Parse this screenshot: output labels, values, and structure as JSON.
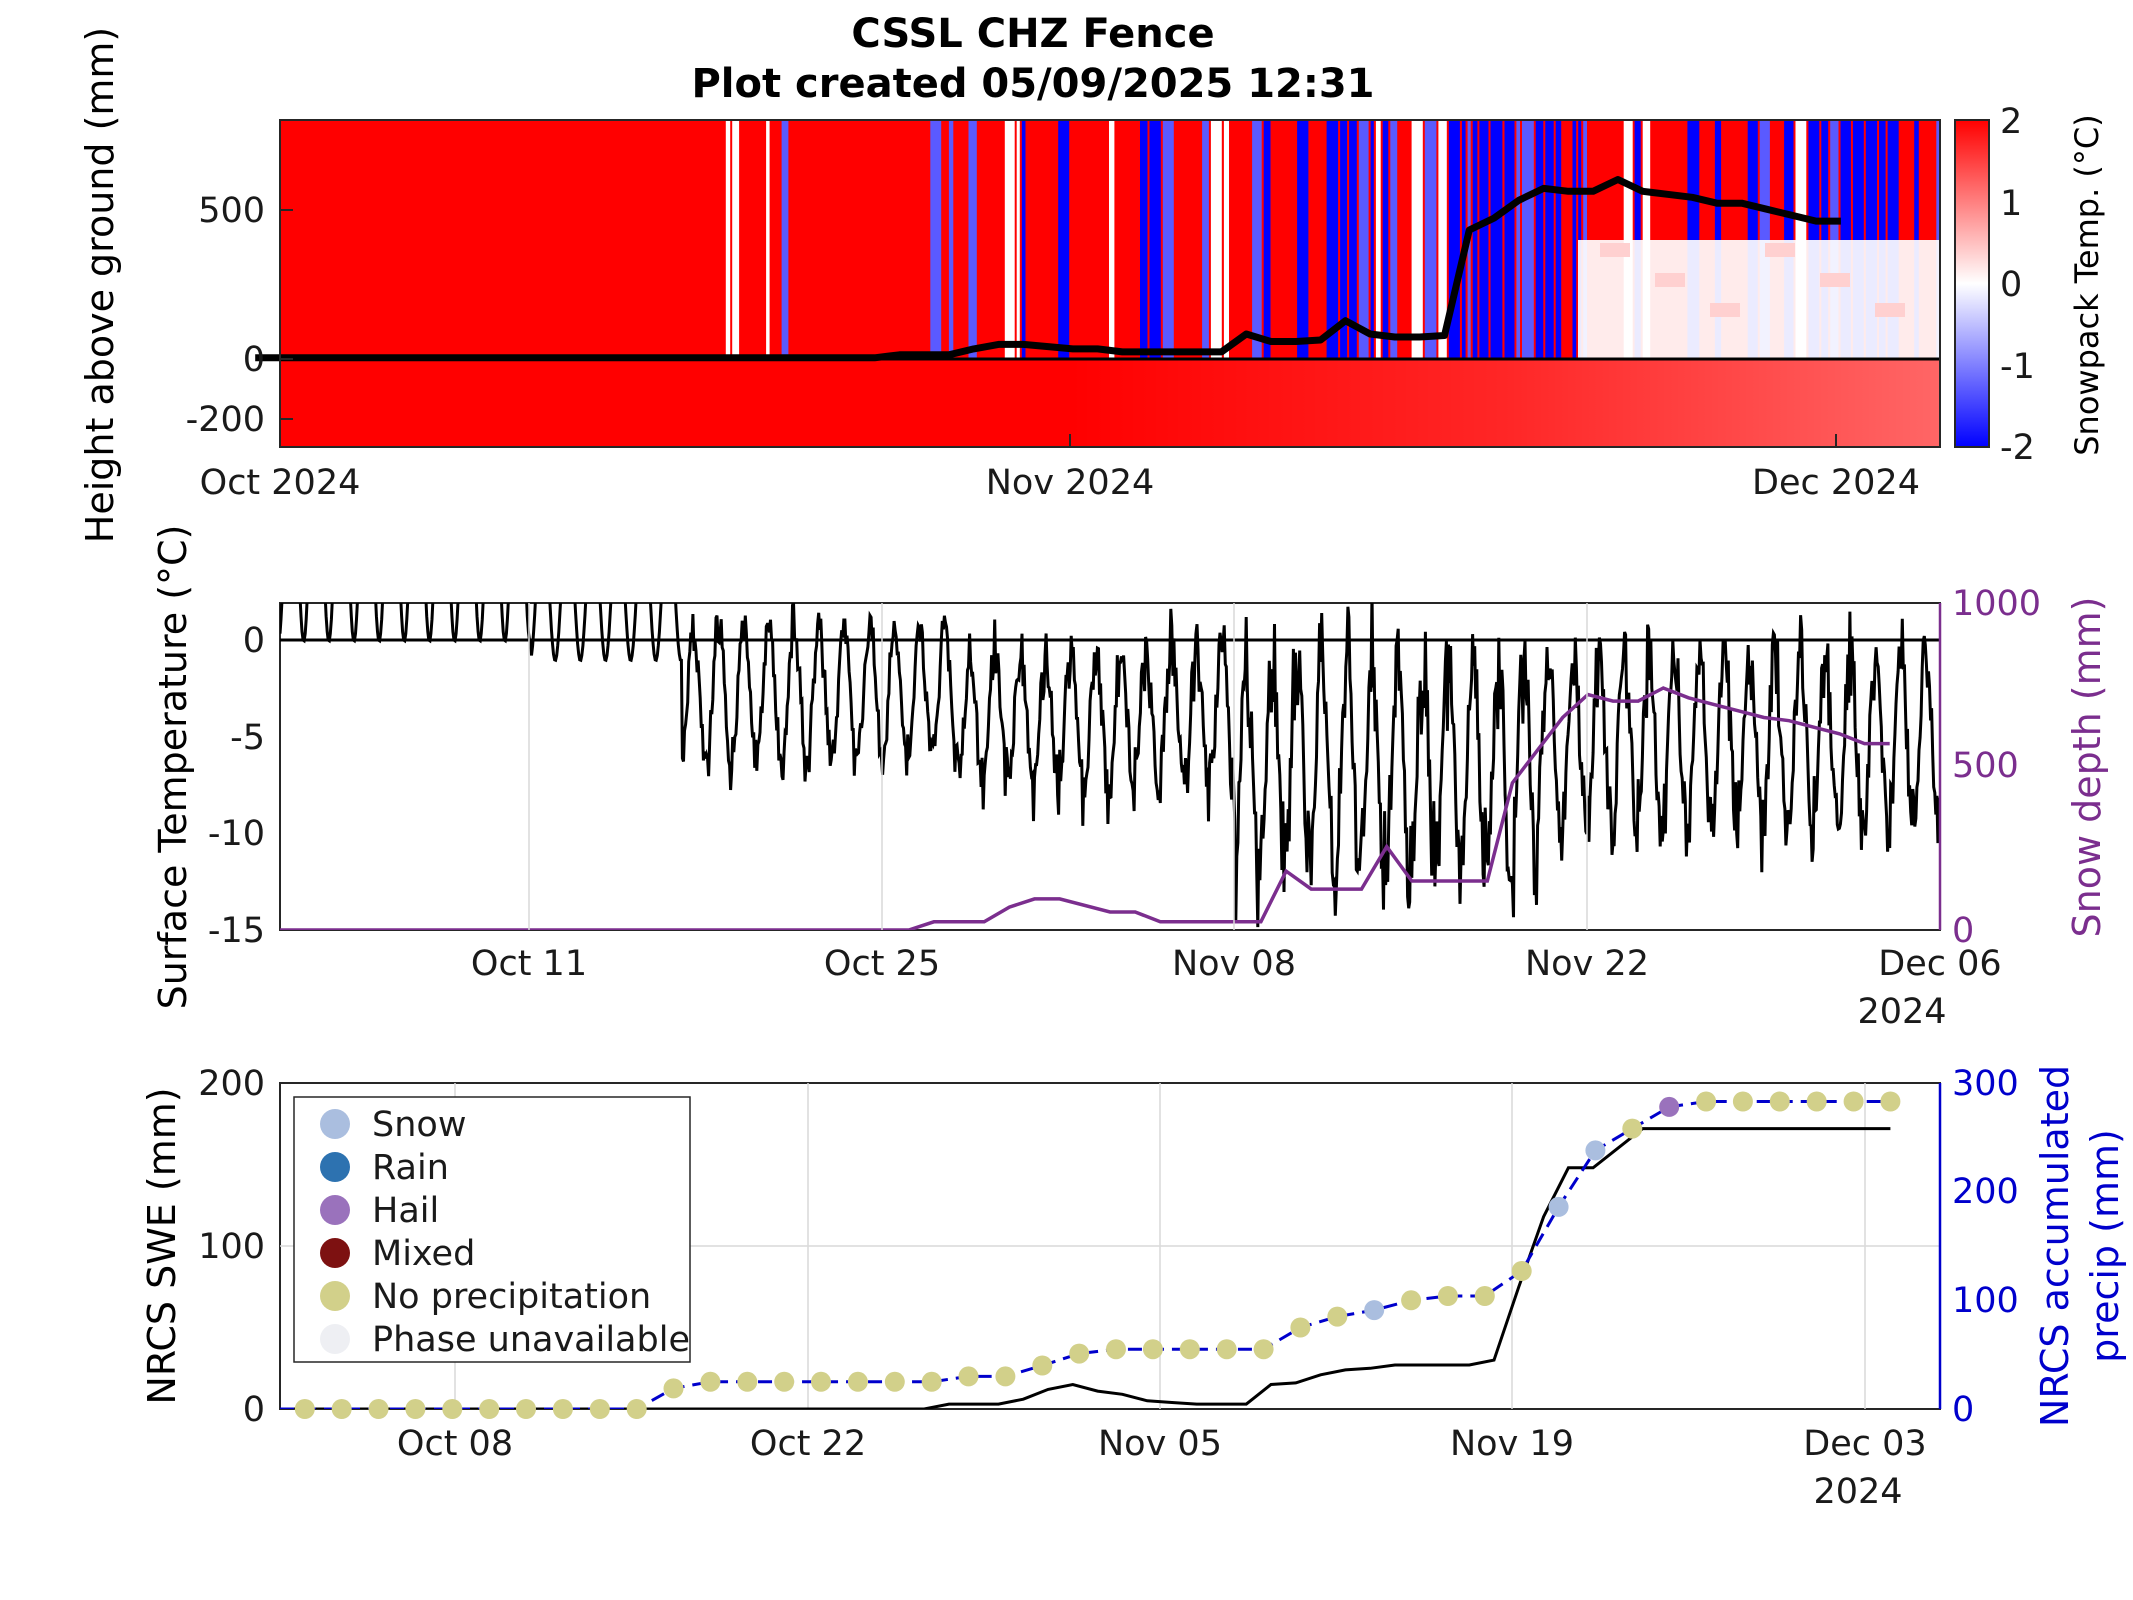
{
  "figure": {
    "title_line1": "CSSL CHZ Fence",
    "title_line2": "Plot created 05/09/2025 12:31"
  },
  "panel1": {
    "ylabel": "Height above ground (mm)",
    "colorbar_label": "Snowpack Temp. (°C)",
    "colorbar_ticks": [
      "2",
      "1",
      "0",
      "-1",
      "-2"
    ],
    "colorbar_range": [
      -2,
      2
    ],
    "y_ticks": [
      "500",
      "0",
      "-200"
    ],
    "x_ticks": [
      "Oct 2024",
      "Nov 2024",
      "Dec 2024"
    ],
    "colors": {
      "warm": "#ff0000",
      "neutral": "#ffffff",
      "cold": "#0000ff",
      "depth_line": "#000000"
    },
    "snow_depth_line": [
      [
        "2024-09-30",
        0
      ],
      [
        "2024-10-25",
        0
      ],
      [
        "2024-10-26",
        10
      ],
      [
        "2024-10-28",
        10
      ],
      [
        "2024-10-29",
        30
      ],
      [
        "2024-10-30",
        45
      ],
      [
        "2024-10-31",
        45
      ],
      [
        "2024-11-02",
        30
      ],
      [
        "2024-11-03",
        30
      ],
      [
        "2024-11-04",
        20
      ],
      [
        "2024-11-07",
        20
      ],
      [
        "2024-11-08",
        20
      ],
      [
        "2024-11-09",
        80
      ],
      [
        "2024-11-10",
        55
      ],
      [
        "2024-11-11",
        55
      ],
      [
        "2024-11-12",
        60
      ],
      [
        "2024-11-13",
        125
      ],
      [
        "2024-11-14",
        80
      ],
      [
        "2024-11-15",
        70
      ],
      [
        "2024-11-16",
        70
      ],
      [
        "2024-11-17",
        75
      ],
      [
        "2024-11-18",
        430
      ],
      [
        "2024-11-19",
        470
      ],
      [
        "2024-11-20",
        530
      ],
      [
        "2024-11-21",
        570
      ],
      [
        "2024-11-22",
        560
      ],
      [
        "2024-11-23",
        560
      ],
      [
        "2024-11-24",
        600
      ],
      [
        "2024-11-25",
        560
      ],
      [
        "2024-11-26",
        550
      ],
      [
        "2024-11-27",
        540
      ],
      [
        "2024-11-28",
        520
      ],
      [
        "2024-11-29",
        520
      ],
      [
        "2024-11-30",
        500
      ],
      [
        "2024-12-01",
        480
      ],
      [
        "2024-12-02",
        460
      ],
      [
        "2024-12-03",
        460
      ]
    ]
  },
  "panel2": {
    "ylabel_left": "Surface Temperature (°C)",
    "ylabel_right": "Snow depth (mm)",
    "y_ticks_left": [
      "0",
      "-5",
      "-10",
      "-15"
    ],
    "y_ticks_right": [
      "1000",
      "500",
      "0"
    ],
    "x_ticks": [
      "Oct 11",
      "Oct 25",
      "Nov 08",
      "Nov 22",
      "Dec 06"
    ],
    "year_label": "2024",
    "ylim_left": [
      -15,
      2
    ],
    "ylim_right": [
      0,
      1000
    ],
    "colors": {
      "temperature": "#000000",
      "snow_depth": "#7b2e8e"
    },
    "snow_depth": [
      [
        "2024-10-01",
        0
      ],
      [
        "2024-10-26",
        0
      ],
      [
        "2024-10-27",
        25
      ],
      [
        "2024-10-29",
        25
      ],
      [
        "2024-10-30",
        70
      ],
      [
        "2024-10-31",
        95
      ],
      [
        "2024-11-01",
        95
      ],
      [
        "2024-11-03",
        55
      ],
      [
        "2024-11-04",
        55
      ],
      [
        "2024-11-05",
        25
      ],
      [
        "2024-11-09",
        25
      ],
      [
        "2024-11-10",
        180
      ],
      [
        "2024-11-11",
        125
      ],
      [
        "2024-11-13",
        125
      ],
      [
        "2024-11-14",
        255
      ],
      [
        "2024-11-15",
        150
      ],
      [
        "2024-11-18",
        150
      ],
      [
        "2024-11-19",
        450
      ],
      [
        "2024-11-20",
        550
      ],
      [
        "2024-11-21",
        650
      ],
      [
        "2024-11-22",
        720
      ],
      [
        "2024-11-23",
        700
      ],
      [
        "2024-11-24",
        700
      ],
      [
        "2024-11-25",
        740
      ],
      [
        "2024-11-26",
        710
      ],
      [
        "2024-11-27",
        690
      ],
      [
        "2024-11-28",
        670
      ],
      [
        "2024-11-29",
        650
      ],
      [
        "2024-11-30",
        640
      ],
      [
        "2024-12-01",
        620
      ],
      [
        "2024-12-02",
        600
      ],
      [
        "2024-12-03",
        570
      ],
      [
        "2024-12-04",
        570
      ]
    ]
  },
  "panel3": {
    "ylabel_left": "NRCS SWE (mm)",
    "ylabel_right_line1": "NRCS accumulated",
    "ylabel_right_line2": "precip (mm)",
    "y_ticks_left": [
      "200",
      "100",
      "0"
    ],
    "y_ticks_right": [
      "300",
      "200",
      "100",
      "0"
    ],
    "x_ticks": [
      "Oct 08",
      "Oct 22",
      "Nov 05",
      "Nov 19",
      "Dec 03"
    ],
    "year_label": "2024",
    "ylim_left": [
      0,
      200
    ],
    "ylim_right": [
      0,
      300
    ],
    "legend": [
      {
        "label": "Snow",
        "color": "#aabedf"
      },
      {
        "label": "Rain",
        "color": "#2d72b0"
      },
      {
        "label": "Hail",
        "color": "#9a72bc"
      },
      {
        "label": "Mixed",
        "color": "#7d1111"
      },
      {
        "label": "No precipitation",
        "color": "#d2d08a"
      },
      {
        "label": "Phase unavailable",
        "color": "#eeeff3"
      }
    ],
    "colors": {
      "swe": "#000000",
      "precip": "#0000cc",
      "right_axis": "#0000cc"
    },
    "swe": [
      [
        "2024-10-01",
        0
      ],
      [
        "2024-10-27",
        0
      ],
      [
        "2024-10-28",
        3
      ],
      [
        "2024-10-30",
        3
      ],
      [
        "2024-10-31",
        6
      ],
      [
        "2024-11-01",
        12
      ],
      [
        "2024-11-02",
        15
      ],
      [
        "2024-11-03",
        11
      ],
      [
        "2024-11-04",
        9
      ],
      [
        "2024-11-05",
        5
      ],
      [
        "2024-11-06",
        4
      ],
      [
        "2024-11-07",
        3
      ],
      [
        "2024-11-09",
        3
      ],
      [
        "2024-11-10",
        15
      ],
      [
        "2024-11-11",
        16
      ],
      [
        "2024-11-12",
        21
      ],
      [
        "2024-11-13",
        24
      ],
      [
        "2024-11-14",
        25
      ],
      [
        "2024-11-15",
        27
      ],
      [
        "2024-11-18",
        27
      ],
      [
        "2024-11-19",
        30
      ],
      [
        "2024-11-20",
        75
      ],
      [
        "2024-11-21",
        118
      ],
      [
        "2024-11-22",
        148
      ],
      [
        "2024-11-23",
        148
      ],
      [
        "2024-11-24",
        160
      ],
      [
        "2024-11-25",
        172
      ],
      [
        "2024-12-05",
        172
      ]
    ],
    "precip_points": [
      {
        "date": "2024-10-02",
        "value": 0,
        "phase": "No precipitation"
      },
      {
        "date": "2024-10-03",
        "value": 0,
        "phase": "No precipitation"
      },
      {
        "date": "2024-10-04",
        "value": 0,
        "phase": "No precipitation"
      },
      {
        "date": "2024-10-05",
        "value": 0,
        "phase": "No precipitation"
      },
      {
        "date": "2024-10-06",
        "value": 0,
        "phase": "No precipitation"
      },
      {
        "date": "2024-10-07",
        "value": 0,
        "phase": "No precipitation"
      },
      {
        "date": "2024-10-08",
        "value": 0,
        "phase": "No precipitation"
      },
      {
        "date": "2024-10-09",
        "value": 0,
        "phase": "No precipitation"
      },
      {
        "date": "2024-10-10",
        "value": 0,
        "phase": "No precipitation"
      },
      {
        "date": "2024-10-11",
        "value": 0,
        "phase": "No precipitation"
      },
      {
        "date": "2024-10-12",
        "value": 19,
        "phase": "No precipitation"
      },
      {
        "date": "2024-10-13",
        "value": 25,
        "phase": "No precipitation"
      },
      {
        "date": "2024-10-14",
        "value": 25,
        "phase": "No precipitation"
      },
      {
        "date": "2024-10-15",
        "value": 25,
        "phase": "No precipitation"
      },
      {
        "date": "2024-10-16",
        "value": 25,
        "phase": "No precipitation"
      },
      {
        "date": "2024-10-17",
        "value": 25,
        "phase": "No precipitation"
      },
      {
        "date": "2024-10-18",
        "value": 25,
        "phase": "No precipitation"
      },
      {
        "date": "2024-10-19",
        "value": 25,
        "phase": "No precipitation"
      },
      {
        "date": "2024-10-20",
        "value": 30,
        "phase": "No precipitation"
      },
      {
        "date": "2024-10-21",
        "value": 30,
        "phase": "No precipitation"
      },
      {
        "date": "2024-10-22",
        "value": 40,
        "phase": "No precipitation"
      },
      {
        "date": "2024-10-23",
        "value": 51,
        "phase": "No precipitation"
      },
      {
        "date": "2024-10-24",
        "value": 55,
        "phase": "No precipitation"
      },
      {
        "date": "2024-10-25",
        "value": 55,
        "phase": "No precipitation"
      },
      {
        "date": "2024-10-26",
        "value": 55,
        "phase": "No precipitation"
      },
      {
        "date": "2024-10-27",
        "value": 55,
        "phase": "No precipitation"
      },
      {
        "date": "2024-10-28",
        "value": 55,
        "phase": "No precipitation"
      },
      {
        "date": "2024-10-29",
        "value": 75,
        "phase": "No precipitation"
      },
      {
        "date": "2024-10-30",
        "value": 85,
        "phase": "No precipitation"
      },
      {
        "date": "2024-10-31",
        "value": 91,
        "phase": "Snow"
      },
      {
        "date": "2024-11-01",
        "value": 100,
        "phase": "No precipitation"
      },
      {
        "date": "2024-11-02",
        "value": 104,
        "phase": "No precipitation"
      },
      {
        "date": "2024-11-03",
        "value": 104,
        "phase": "No precipitation"
      },
      {
        "date": "2024-11-04",
        "value": 127,
        "phase": "No precipitation"
      },
      {
        "date": "2024-11-05",
        "value": 186,
        "phase": "Snow"
      },
      {
        "date": "2024-11-06",
        "value": 238,
        "phase": "Snow"
      },
      {
        "date": "2024-11-07",
        "value": 258,
        "phase": "No precipitation"
      },
      {
        "date": "2024-11-08",
        "value": 278,
        "phase": "Hail"
      },
      {
        "date": "2024-11-09",
        "value": 283,
        "phase": "No precipitation"
      },
      {
        "date": "2024-11-10",
        "value": 283,
        "phase": "No precipitation"
      },
      {
        "date": "2024-11-11",
        "value": 283,
        "phase": "No precipitation"
      },
      {
        "date": "2024-11-12",
        "value": 283,
        "phase": "No precipitation"
      },
      {
        "date": "2024-11-13",
        "value": 283,
        "phase": "No precipitation"
      },
      {
        "date": "2024-11-14",
        "value": 283,
        "phase": "No precipitation"
      }
    ]
  },
  "chart_data": [
    {
      "type": "heatmap",
      "title": "CSSL CHZ Fence",
      "subtitle": "Plot created 05/09/2025 12:31",
      "ylabel": "Height above ground (mm)",
      "colorbar_label": "Snowpack Temp. (°C)",
      "clim": [
        -2,
        2
      ],
      "y_ticks": [
        500,
        0,
        -200
      ],
      "x_ticks": [
        "Oct 2024",
        "Nov 2024",
        "Dec 2024"
      ],
      "xlim": [
        "2024-10-01",
        "2024-12-07"
      ],
      "ylim": [
        -300,
        800
      ]
    },
    {
      "type": "line",
      "ylabel": "Surface Temperature (°C)",
      "ylabel_right": "Snow depth (mm)",
      "x_ticks": [
        "Oct 11",
        "Oct 25",
        "Nov 08",
        "Nov 22",
        "Dec 06"
      ],
      "ylim": [
        -15,
        2
      ],
      "ylim_right": [
        0,
        1000
      ],
      "series": [
        {
          "name": "Surface Temperature (°C)"
        },
        {
          "name": "Snow depth (mm)"
        }
      ]
    },
    {
      "type": "line",
      "ylabel": "NRCS SWE (mm)",
      "ylabel_right": "NRCS accumulated precip (mm)",
      "x_ticks": [
        "Oct 08",
        "Oct 22",
        "Nov 05",
        "Nov 19",
        "Dec 03"
      ],
      "ylim": [
        0,
        200
      ],
      "ylim_right": [
        0,
        300
      ],
      "legend": [
        "Snow",
        "Rain",
        "Hail",
        "Mixed",
        "No precipitation",
        "Phase unavailable"
      ],
      "series": [
        {
          "name": "NRCS SWE (mm)"
        },
        {
          "name": "NRCS accumulated precip (mm)"
        }
      ]
    }
  ]
}
